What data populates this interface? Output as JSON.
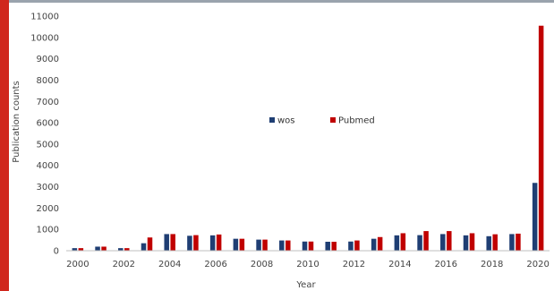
{
  "chart_data": {
    "type": "bar",
    "xlabel": "Year",
    "ylabel": "Publication counts",
    "ylim": [
      0,
      11000
    ],
    "yticks": [
      0,
      1000,
      2000,
      3000,
      4000,
      5000,
      6000,
      7000,
      8000,
      9000,
      10000,
      11000
    ],
    "categories": [
      "2000",
      "2001",
      "2002",
      "2003",
      "2004",
      "2005",
      "2006",
      "2007",
      "2008",
      "2009",
      "2010",
      "2011",
      "2012",
      "2013",
      "2014",
      "2015",
      "2016",
      "2017",
      "2018",
      "2019",
      "2020"
    ],
    "xtick_labels": [
      "2000",
      "",
      "2002",
      "",
      "2004",
      "",
      "2006",
      "",
      "2008",
      "",
      "2010",
      "",
      "2012",
      "",
      "2014",
      "",
      "2016",
      "",
      "2018",
      "",
      "2020"
    ],
    "legend_position": "center",
    "grid": false,
    "series": [
      {
        "name": "wos",
        "color": "#1f3e73",
        "values": [
          120,
          190,
          120,
          350,
          780,
          700,
          720,
          560,
          520,
          480,
          430,
          420,
          430,
          560,
          720,
          730,
          780,
          720,
          680,
          780,
          3180
        ]
      },
      {
        "name": "Pubmed",
        "color": "#c00000",
        "values": [
          120,
          190,
          120,
          620,
          780,
          730,
          760,
          560,
          520,
          480,
          430,
          420,
          480,
          640,
          820,
          920,
          920,
          820,
          770,
          800,
          10550
        ]
      }
    ]
  }
}
